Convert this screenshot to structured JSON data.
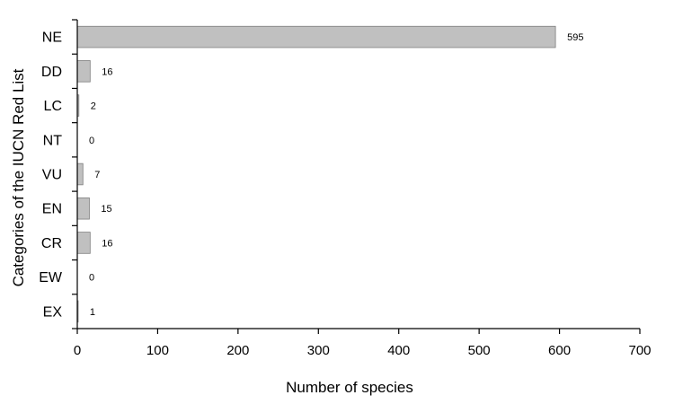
{
  "chart_data": {
    "type": "bar",
    "orientation": "horizontal",
    "categories": [
      "NE",
      "DD",
      "LC",
      "NT",
      "VU",
      "EN",
      "CR",
      "EW",
      "EX"
    ],
    "values": [
      595,
      16,
      2,
      0,
      7,
      15,
      16,
      0,
      1
    ],
    "xlabel": "Number of species",
    "ylabel": "Categories of the IUCN Red List",
    "xlim": [
      0,
      700
    ],
    "xticks": [
      0,
      100,
      200,
      300,
      400,
      500,
      600,
      700
    ],
    "grid": false,
    "legend": "none",
    "colors": {
      "bar_fill": "#c0c0c0",
      "bar_stroke": "#7f7f7f",
      "axis": "#000000"
    }
  }
}
